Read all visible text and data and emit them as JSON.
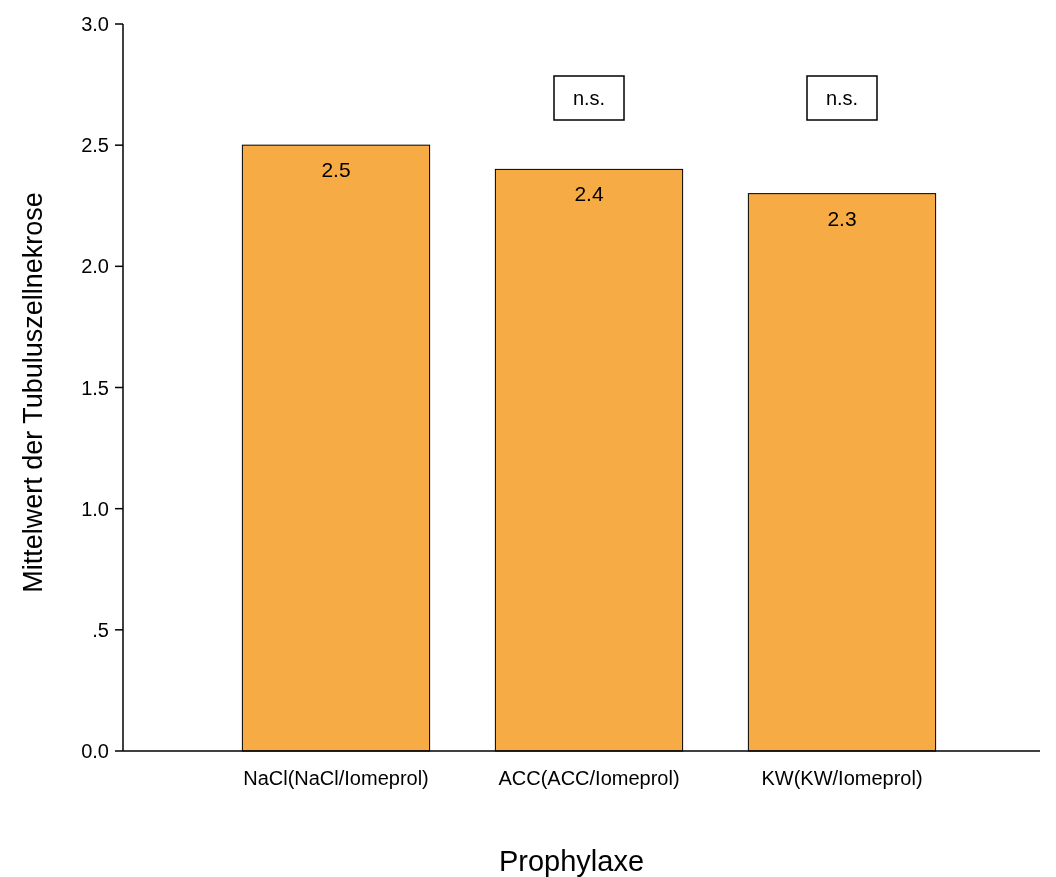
{
  "chart_data": {
    "type": "bar",
    "xlabel": "Prophylaxe",
    "ylabel": "Mittelwert der Tubuluszellnekrose",
    "categories": [
      "NaCl(NaCl/Iomeprol)",
      "ACC(ACC/Iomeprol)",
      "KW(KW/Iomeprol)"
    ],
    "values": [
      2.5,
      2.4,
      2.3
    ],
    "color": "#f7ab45",
    "data_labels": true,
    "ylim": [
      0,
      3
    ],
    "yticks": [
      {
        "value": 0,
        "label": "0.0"
      },
      {
        "value": 0.5,
        "label": ".5"
      },
      {
        "value": 1,
        "label": "1.0"
      },
      {
        "value": 1.5,
        "label": "1.5"
      },
      {
        "value": 2,
        "label": "2.0"
      },
      {
        "value": 2.5,
        "label": "2.5"
      },
      {
        "value": 3,
        "label": "3.0"
      }
    ],
    "annotations": [
      "n.s.",
      "n.s."
    ],
    "grid": false
  }
}
